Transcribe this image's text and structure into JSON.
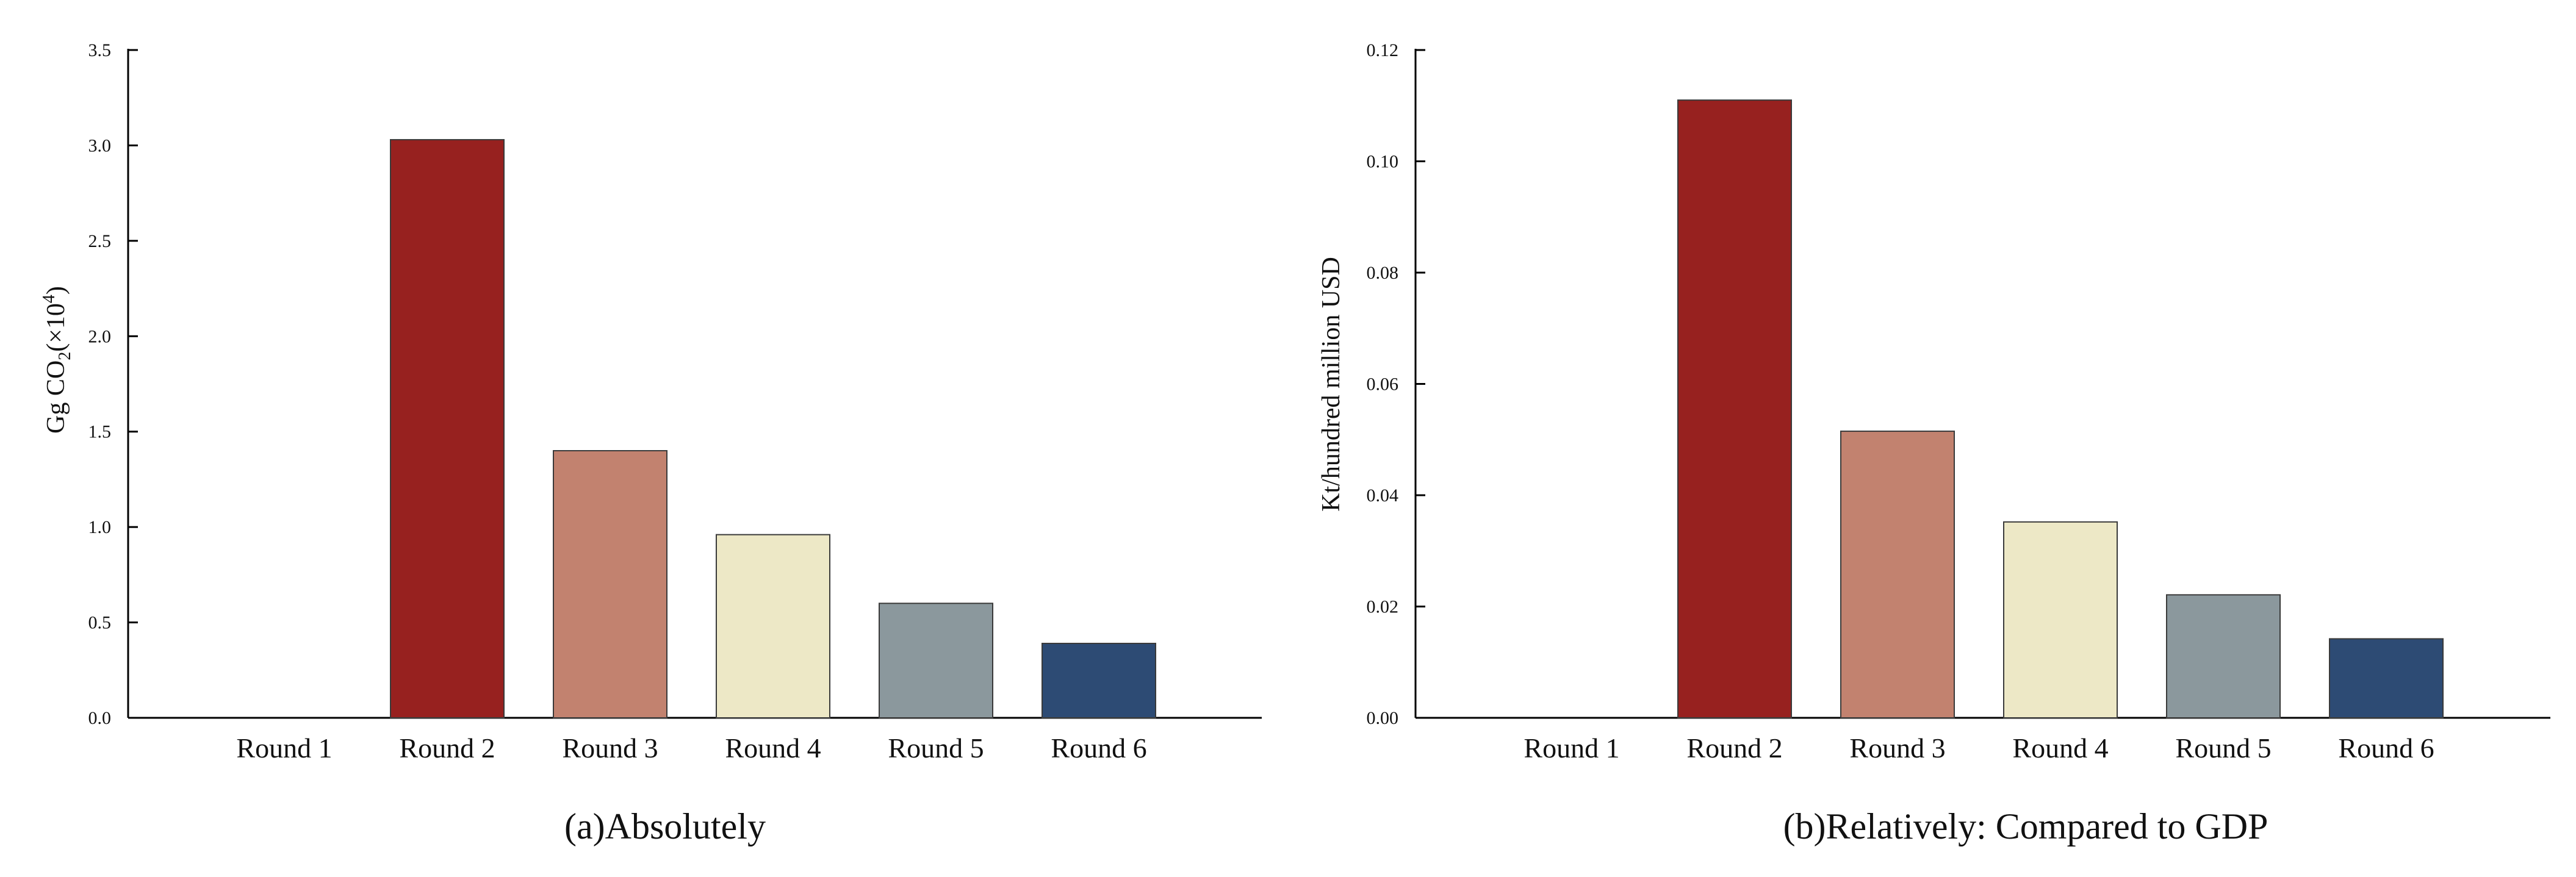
{
  "chart_data": [
    {
      "type": "bar",
      "caption": "(a)Absolutely",
      "ylabel": {
        "pre": "Gg CO",
        "sub": "2",
        "mid": "(×10",
        "sup": "4",
        "post": ")"
      },
      "categories": [
        "Round 1",
        "Round 2",
        "Round 3",
        "Round 4",
        "Round 5",
        "Round 6"
      ],
      "values": [
        0,
        3.03,
        1.4,
        0.96,
        0.6,
        0.39
      ],
      "ylim": [
        0,
        3.5
      ],
      "yticks": [
        "0.0",
        "0.5",
        "1.0",
        "1.5",
        "2.0",
        "2.5",
        "3.0",
        "3.5"
      ],
      "colors": [
        "#ffffff",
        "#97211f",
        "#c2826f",
        "#ede8c6",
        "#8b989d",
        "#2d4b74"
      ]
    },
    {
      "type": "bar",
      "caption": "(b)Relatively: Compared to GDP",
      "ylabel": {
        "pre": "Kt/hundred million USD"
      },
      "categories": [
        "Round 1",
        "Round 2",
        "Round 3",
        "Round 4",
        "Round 5",
        "Round 6"
      ],
      "values": [
        0,
        0.111,
        0.0515,
        0.0352,
        0.0221,
        0.0142
      ],
      "ylim": [
        0,
        0.12
      ],
      "yticks": [
        "0.00",
        "0.02",
        "0.04",
        "0.06",
        "0.08",
        "0.10",
        "0.12"
      ],
      "colors": [
        "#ffffff",
        "#97211f",
        "#c2826f",
        "#ede8c6",
        "#8b989d",
        "#2d4b74"
      ]
    }
  ]
}
